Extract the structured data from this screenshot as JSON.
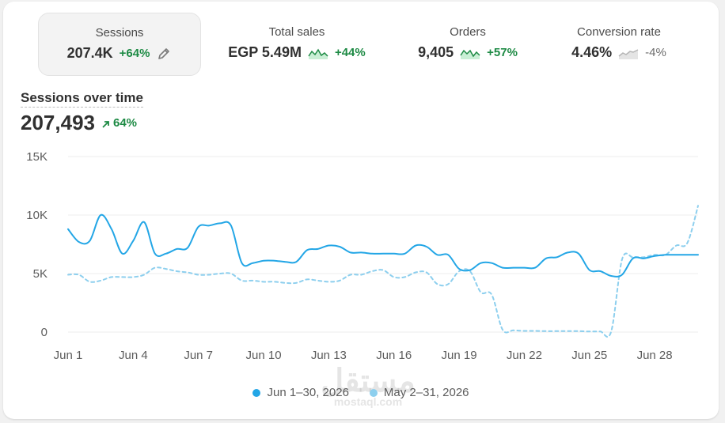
{
  "metrics": [
    {
      "label": "Sessions",
      "value": "207.4K",
      "change": "+64%",
      "trend": "up",
      "active": true
    },
    {
      "label": "Total sales",
      "value": "EGP 5.49M",
      "change": "+44%",
      "trend": "up",
      "active": false
    },
    {
      "label": "Orders",
      "value": "9,405",
      "change": "+57%",
      "trend": "up",
      "active": false
    },
    {
      "label": "Conversion rate",
      "value": "4.46%",
      "change": "-4%",
      "trend": "down",
      "active": false
    }
  ],
  "colors": {
    "current": "#23a6e6",
    "previous": "#8dcfee",
    "positive": "#1d8a44"
  },
  "watermark": {
    "arabic": "مستقل",
    "url": "mostaql.com"
  },
  "chart_data": {
    "type": "line",
    "title": "Sessions over time",
    "total": "207,493",
    "total_change": "64%",
    "xlabel": "",
    "ylabel": "",
    "ylim": [
      0,
      15000
    ],
    "yticks": [
      0,
      5000,
      10000,
      15000
    ],
    "ytick_labels": [
      "0",
      "5K",
      "10K",
      "15K"
    ],
    "xticks": [
      "Jun 1",
      "Jun 4",
      "Jun 7",
      "Jun 10",
      "Jun 13",
      "Jun 16",
      "Jun 19",
      "Jun 22",
      "Jun 25",
      "Jun 28"
    ],
    "grid": true,
    "legend": "bottom",
    "x": [
      1,
      1.5,
      2,
      2.5,
      3,
      3.5,
      4,
      4.5,
      5,
      5.5,
      6,
      6.5,
      7,
      7.5,
      8,
      8.5,
      9,
      9.5,
      10,
      10.5,
      11,
      11.5,
      12,
      12.5,
      13,
      13.5,
      14,
      14.5,
      15,
      15.5,
      16,
      16.5,
      17,
      17.5,
      18,
      18.5,
      19,
      19.5,
      20,
      20.5,
      21,
      21.5,
      22,
      22.5,
      23,
      23.5,
      24,
      24.5,
      25,
      25.5,
      26,
      26.5,
      27,
      27.5,
      28,
      28.5,
      29,
      29.5,
      30
    ],
    "series": [
      {
        "name": "Jun 1–30, 2026",
        "style": "solid",
        "values": [
          8800,
          7700,
          7800,
          10000,
          8800,
          6700,
          7800,
          9400,
          6700,
          6700,
          7100,
          7200,
          9000,
          9100,
          9300,
          9100,
          5900,
          5900,
          6100,
          6100,
          6000,
          6000,
          7000,
          7100,
          7400,
          7300,
          6800,
          6800,
          6700,
          6700,
          6700,
          6700,
          7400,
          7300,
          6600,
          6600,
          5400,
          5300,
          5900,
          5900,
          5500,
          5500,
          5500,
          5500,
          6300,
          6400,
          6800,
          6700,
          5300,
          5200,
          4800,
          4900,
          6300,
          6300,
          6500,
          6600,
          6600,
          6600,
          6600
        ]
      },
      {
        "name": "May 2–31, 2026",
        "style": "dashed",
        "values": [
          4900,
          4900,
          4300,
          4400,
          4700,
          4700,
          4700,
          4900,
          5500,
          5400,
          5200,
          5100,
          4900,
          4900,
          5000,
          5000,
          4400,
          4400,
          4300,
          4300,
          4200,
          4200,
          4500,
          4400,
          4300,
          4400,
          4900,
          4900,
          5200,
          5300,
          4700,
          4700,
          5100,
          5100,
          4100,
          4100,
          5200,
          5200,
          3400,
          3200,
          200,
          150,
          100,
          100,
          80,
          80,
          80,
          80,
          50,
          50,
          50,
          6200,
          6400,
          6400,
          6600,
          6600,
          7400,
          7600,
          10800
        ]
      }
    ]
  }
}
